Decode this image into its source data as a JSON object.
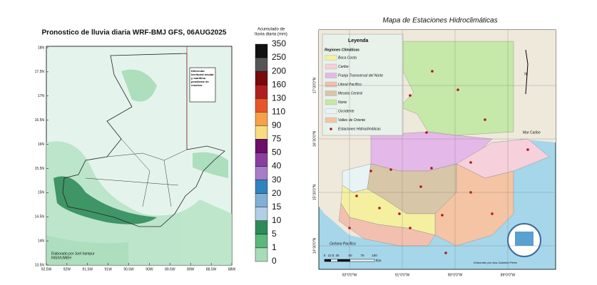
{
  "left_map": {
    "title": "Pronostico de lluvia diaria WRF-BMJ GFS,  06AUG2025",
    "note": "Diferendo territorial insular y marítimo pendiente de resolver.",
    "credit": [
      "Elaborado por Joel Irampur",
      "INSIVUMEH"
    ],
    "lat_ticks": [
      "18N",
      "17.5N",
      "17N",
      "16.5N",
      "16N",
      "15.5N",
      "15N",
      "14.5N",
      "14N",
      "13.5N"
    ],
    "lon_ticks": [
      "92.5W",
      "92W",
      "91.5W",
      "91W",
      "90.5W",
      "90W",
      "89.5W",
      "89W",
      "88.5W",
      "88W"
    ]
  },
  "colorbar": {
    "title": [
      "Acumulado de",
      "lluvia diaria (mm)"
    ],
    "levels": [
      350,
      250,
      200,
      160,
      130,
      110,
      90,
      75,
      50,
      40,
      30,
      20,
      15,
      10,
      5,
      1,
      0
    ],
    "colors": [
      "#111111",
      "#555555",
      "#7a0a0a",
      "#b01f1f",
      "#e8552a",
      "#f7a04a",
      "#f8dc80",
      "#6b0f6b",
      "#8a3ea0",
      "#a77cc8",
      "#2f84c0",
      "#7fb0d8",
      "#b2cfe6",
      "#2e8b57",
      "#5cb87a",
      "#a8dcb8"
    ]
  },
  "right_map": {
    "title": "Mapa de Estaciones Hidroclimáticas",
    "legend_title": "Leyenda",
    "regions_title": "Regiones Climáticas",
    "regions": [
      {
        "name": "Boca Costa",
        "color": "#f5f0a0"
      },
      {
        "name": "Caribe",
        "color": "#f6d0da"
      },
      {
        "name": "Franja Transversal del Norte",
        "color": "#e4b8e8"
      },
      {
        "name": "Litoral Pacífico",
        "color": "#f3c0b0"
      },
      {
        "name": "Meseta Central",
        "color": "#d8c6a8"
      },
      {
        "name": "Norte",
        "color": "#c6e8a8"
      },
      {
        "name": "Occidente",
        "color": "#e8f3f6"
      },
      {
        "name": "Valles de Oriente",
        "color": "#f4c4a4"
      }
    ],
    "stations_label": "Estaciones Hidroclimáticas",
    "sea_caribe": "Mar Caribe",
    "sea_pacifico": "Océano Pacífico",
    "north": "N",
    "scale": [
      "0",
      "12.5",
      "25",
      "50",
      "75",
      "100"
    ],
    "scale_unit": "Km",
    "credit": "Elaborado por Ana Gabriela Pérez",
    "lat_ticks": [
      "17°30'0\"N",
      "16°30'0\"N",
      "15°30'0\"N",
      "14°30'0\"N"
    ],
    "lon_ticks": [
      "92°0'0\"W",
      "91°0'0\"W",
      "90°0'0\"W",
      "89°0'0\"W"
    ]
  }
}
